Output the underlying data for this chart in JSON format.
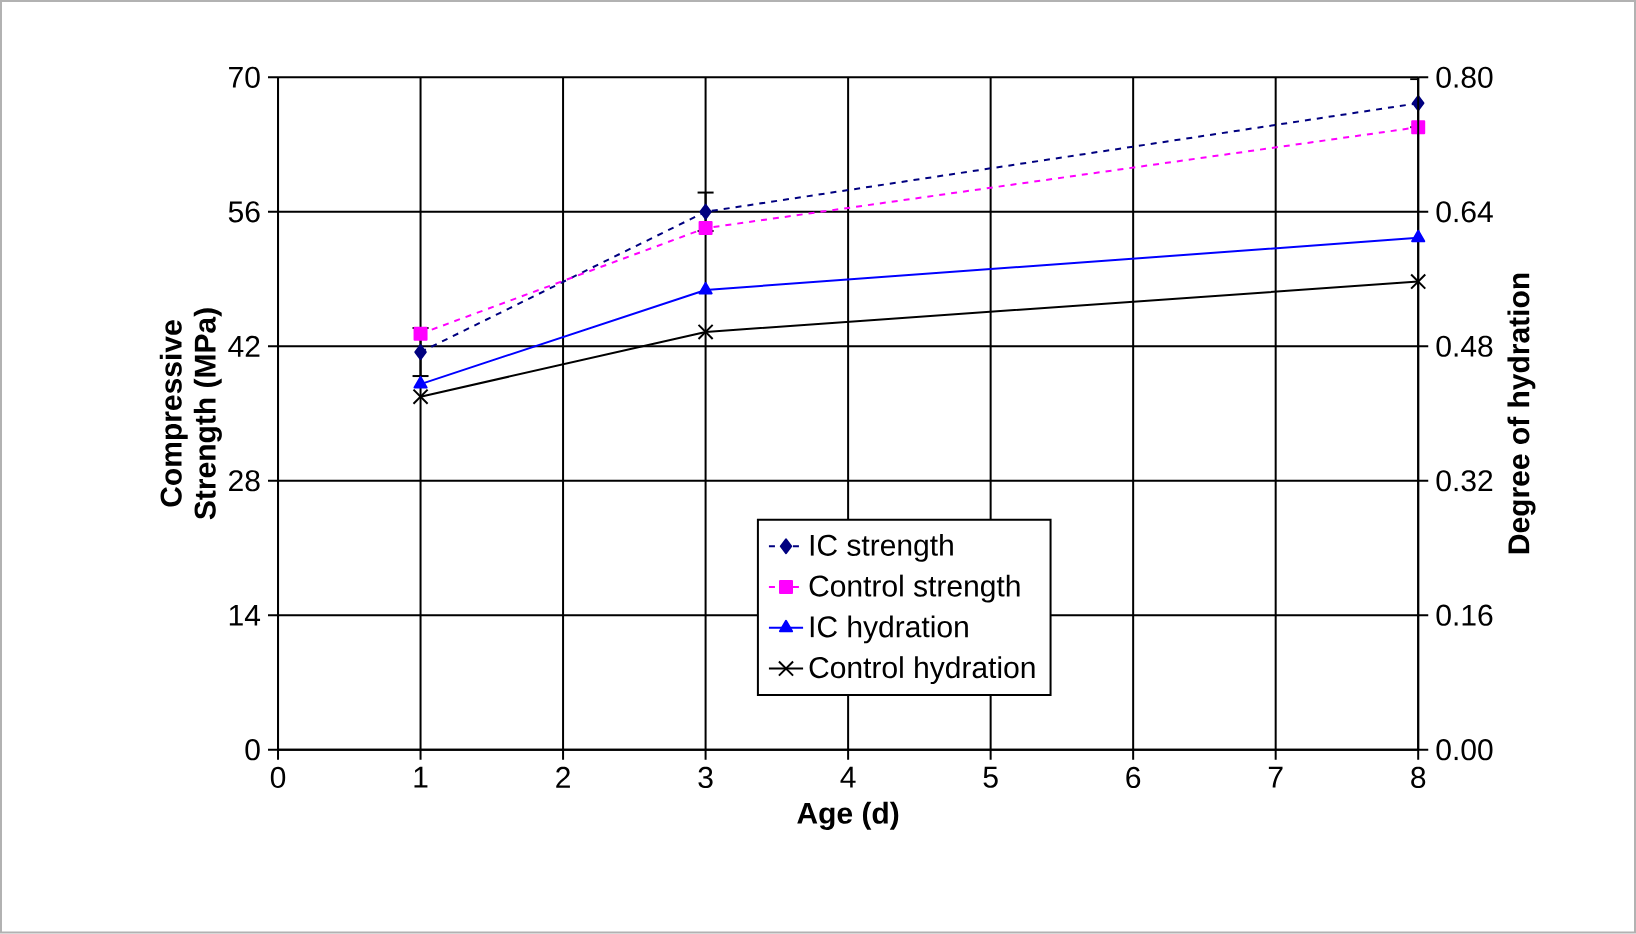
{
  "chart_data": {
    "type": "line",
    "xlabel": "Age (d)",
    "ylabel": "Compressive Strength (MPa)",
    "y2label": "Degree of hydration",
    "x": [
      1,
      3,
      8
    ],
    "xlim": [
      0,
      8
    ],
    "xticks": [
      0,
      1,
      2,
      3,
      4,
      5,
      6,
      7,
      8
    ],
    "ylim": [
      0,
      70
    ],
    "yticks": [
      0,
      14,
      28,
      42,
      56,
      70
    ],
    "y2lim": [
      0,
      0.8
    ],
    "y2ticks": [
      {
        "value": 0,
        "label": "0.00"
      },
      {
        "value": 0.16,
        "label": "0.16"
      },
      {
        "value": 0.32,
        "label": "0.32"
      },
      {
        "value": 0.48,
        "label": "0.48"
      },
      {
        "value": 0.64,
        "label": "0.64"
      },
      {
        "value": 0.8,
        "label": "0.80"
      }
    ],
    "grid": true,
    "legend": "bottom right",
    "series": [
      {
        "name": "IC strength",
        "color": "#000080",
        "values": [
          41.4,
          56.0,
          67.3
        ],
        "errors": [
          2.5,
          2,
          2.5
        ],
        "marker": "diamond",
        "line_style": "dashed"
      },
      {
        "name": "Control strength",
        "color": "#ff00ff",
        "values": [
          43.3,
          54.3,
          64.8
        ],
        "marker": "square",
        "line_style": "dashed"
      },
      {
        "name": "IC hydration",
        "color": "#0000ff",
        "values": [
          0.435,
          0.547,
          0.609
        ],
        "marker": "triangle",
        "line_style": "solid",
        "axis": "y2"
      },
      {
        "name": "Control hydration",
        "color": "#000000",
        "values": [
          0.42,
          0.497,
          0.557
        ],
        "marker": "cross",
        "line_style": "solid",
        "axis": "y2"
      }
    ]
  }
}
